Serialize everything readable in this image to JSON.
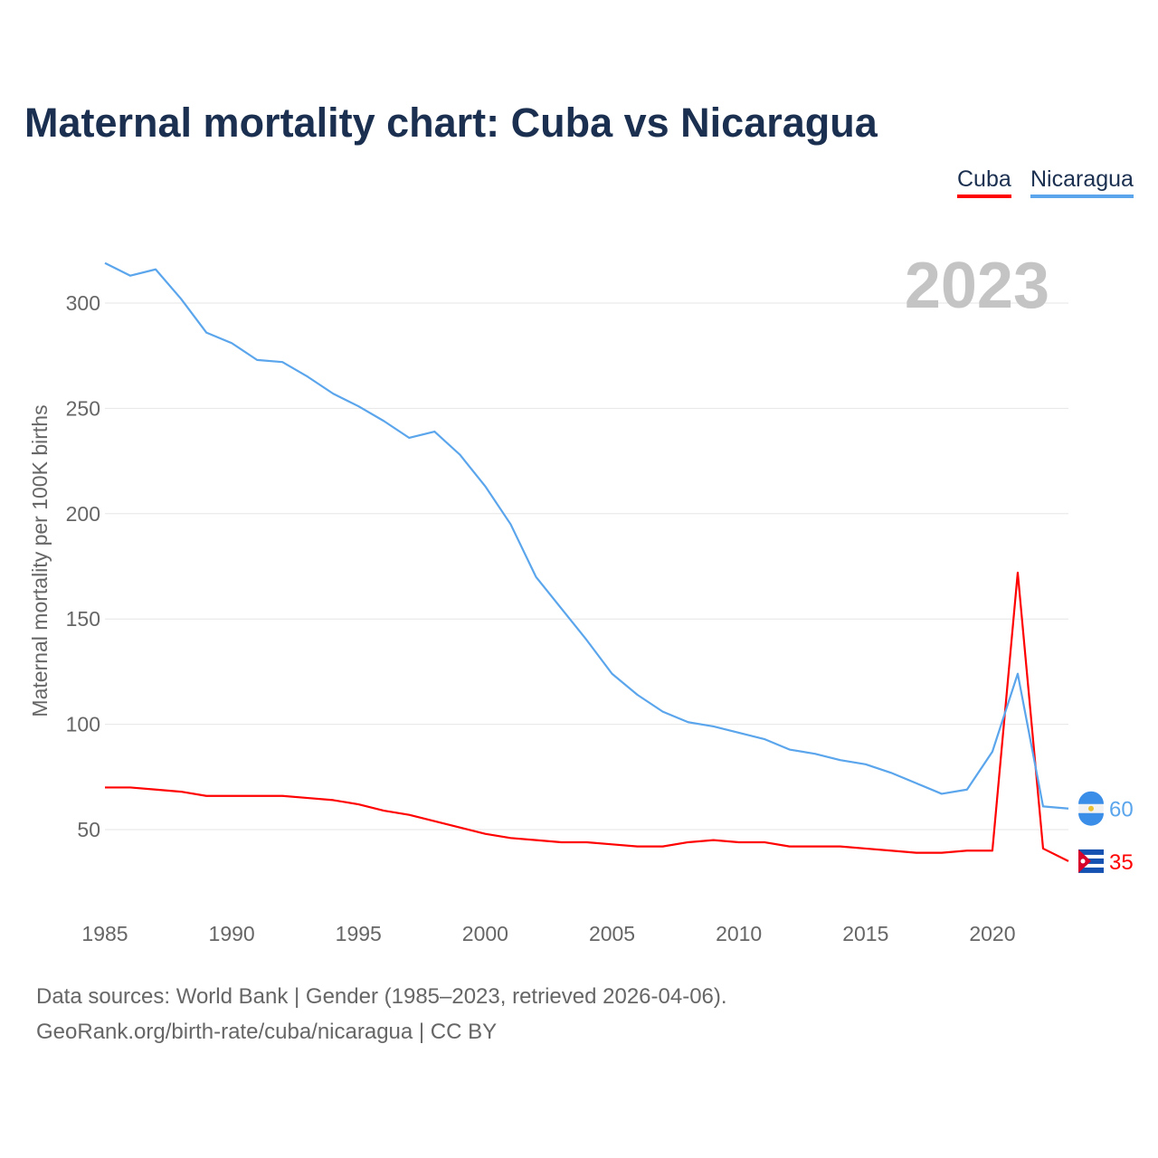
{
  "chart_data": {
    "type": "line",
    "title": "Maternal mortality chart: Cuba vs Nicaragua",
    "ylabel": "Maternal mortality per 100K births",
    "xlabel": "",
    "year_label": "2023",
    "xlim": [
      1985,
      2023
    ],
    "ylim": [
      20,
      320
    ],
    "x_ticks": [
      1985,
      1990,
      1995,
      2000,
      2005,
      2010,
      2015,
      2020
    ],
    "y_ticks": [
      50,
      100,
      150,
      200,
      250,
      300
    ],
    "grid": true,
    "legend_position": "top-right",
    "x": [
      1985,
      1986,
      1987,
      1988,
      1989,
      1990,
      1991,
      1992,
      1993,
      1994,
      1995,
      1996,
      1997,
      1998,
      1999,
      2000,
      2001,
      2002,
      2003,
      2004,
      2005,
      2006,
      2007,
      2008,
      2009,
      2010,
      2011,
      2012,
      2013,
      2014,
      2015,
      2016,
      2017,
      2018,
      2019,
      2020,
      2021,
      2022,
      2023
    ],
    "series": [
      {
        "name": "Cuba",
        "color": "#ff0000",
        "end_label": "35",
        "values": [
          70,
          70,
          69,
          68,
          66,
          66,
          66,
          66,
          65,
          64,
          62,
          59,
          57,
          54,
          51,
          48,
          46,
          45,
          44,
          44,
          43,
          42,
          42,
          44,
          45,
          44,
          44,
          42,
          42,
          42,
          41,
          40,
          39,
          39,
          40,
          40,
          172,
          41,
          35
        ]
      },
      {
        "name": "Nicaragua",
        "color": "#5aa5ec",
        "end_label": "60",
        "values": [
          319,
          313,
          316,
          302,
          286,
          281,
          273,
          272,
          265,
          257,
          251,
          244,
          236,
          239,
          228,
          213,
          195,
          170,
          155,
          140,
          124,
          114,
          106,
          101,
          99,
          96,
          93,
          88,
          86,
          83,
          81,
          77,
          72,
          67,
          69,
          87,
          124,
          61,
          60
        ]
      }
    ]
  },
  "footer": {
    "line1": "Data sources: World Bank | Gender (1985–2023, retrieved 2026-04-06).",
    "line2": "GeoRank.org/birth-rate/cuba/nicaragua | CC BY"
  }
}
